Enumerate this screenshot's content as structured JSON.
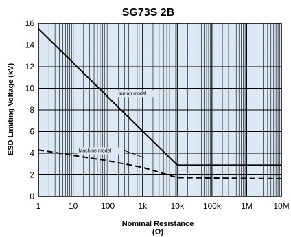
{
  "chart_data": {
    "type": "line",
    "title": "SG73S 2B",
    "xlabel": "Nominal Resistance",
    "xlabel_unit": "(Ω)",
    "ylabel": "ESD Limiting Voltage (kV)",
    "xscale": "log",
    "xlim": [
      1,
      10000000
    ],
    "ylim": [
      0,
      16
    ],
    "x_ticks": [
      1,
      10,
      100,
      1000,
      10000,
      100000,
      1000000,
      10000000
    ],
    "x_tick_labels": [
      "1",
      "10",
      "100",
      "1k",
      "10k",
      "100k",
      "1M",
      "10M"
    ],
    "y_ticks": [
      0,
      2,
      4,
      6,
      8,
      10,
      12,
      14,
      16
    ],
    "y_tick_labels": [
      "0",
      "2",
      "4",
      "6",
      "8",
      "10",
      "12",
      "14",
      "16"
    ],
    "grid": true,
    "plot_background": "#dce8f4",
    "series": [
      {
        "name": "Human model",
        "style": "solid",
        "color": "#000000",
        "points": [
          [
            1,
            15.5
          ],
          [
            10000,
            2.9
          ],
          [
            10000000,
            2.9
          ]
        ]
      },
      {
        "name": "Machine model",
        "style": "dashed",
        "color": "#000000",
        "points": [
          [
            1,
            4.3
          ],
          [
            10,
            3.8
          ],
          [
            100,
            3.3
          ],
          [
            1000,
            2.7
          ],
          [
            10000,
            1.75
          ],
          [
            10000000,
            1.65
          ]
        ]
      }
    ],
    "annotations": [
      {
        "text": "Human model"
      },
      {
        "text": "Machine model"
      }
    ]
  }
}
